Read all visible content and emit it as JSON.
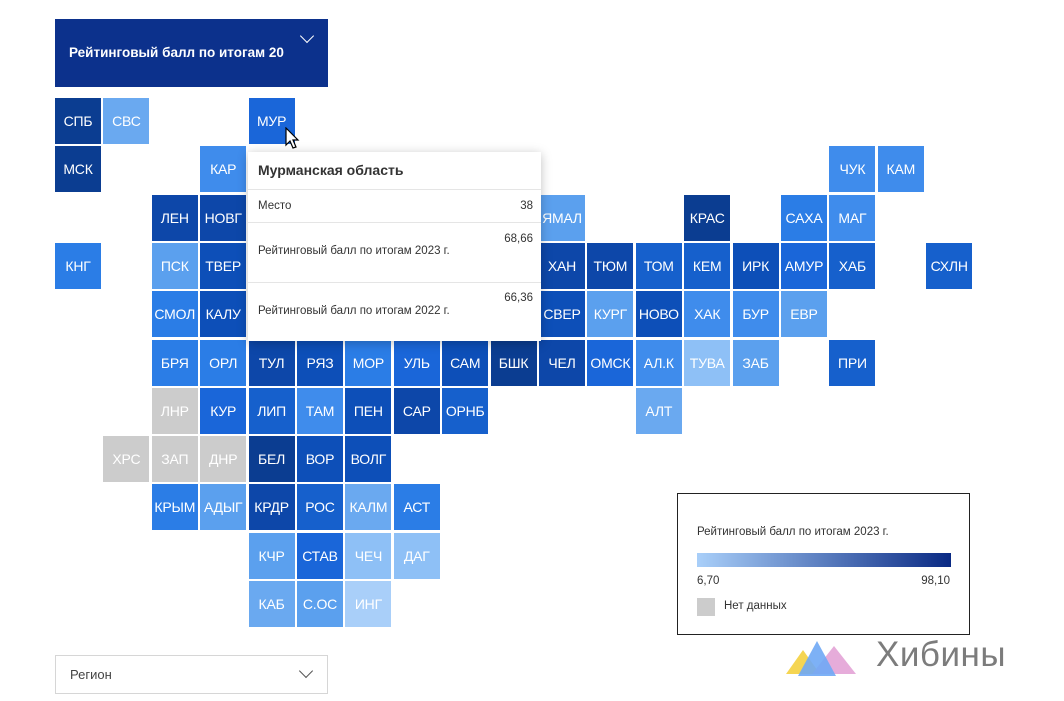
{
  "metric_selector": {
    "label": "Рейтинговый балл по итогам 20"
  },
  "regions": [
    {
      "code": "СПБ",
      "color": "#0b3d91"
    },
    {
      "code": "СВС",
      "color": "#6aa9f0"
    },
    {
      "code": "МУР",
      "color": "#1a66d9"
    },
    {
      "code": "МСК",
      "color": "#0b3d91"
    },
    {
      "code": "КАР",
      "color": "#3f8cec"
    },
    {
      "code": "ЧУК",
      "color": "#3f8cec"
    },
    {
      "code": "КАМ",
      "color": "#3f8cec"
    },
    {
      "code": "ЛЕН",
      "color": "#0d47a9"
    },
    {
      "code": "НОВГ",
      "color": "#0d47a9"
    },
    {
      "code": "ЯМАЛ",
      "color": "#5ba0ee"
    },
    {
      "code": "КРАС",
      "color": "#0b3d91"
    },
    {
      "code": "САХА",
      "color": "#2b7de6"
    },
    {
      "code": "МАГ",
      "color": "#3f8cec"
    },
    {
      "code": "КНГ",
      "color": "#2b7de6"
    },
    {
      "code": "ПСК",
      "color": "#5ba0ee"
    },
    {
      "code": "ТВЕР",
      "color": "#0d4fb8"
    },
    {
      "code": "ХАН",
      "color": "#0d47a9"
    },
    {
      "code": "ТЮМ",
      "color": "#0d47a9"
    },
    {
      "code": "ТОМ",
      "color": "#1660cc"
    },
    {
      "code": "КЕМ",
      "color": "#1660cc"
    },
    {
      "code": "ИРК",
      "color": "#0d4fb8"
    },
    {
      "code": "АМУР",
      "color": "#1a66d9"
    },
    {
      "code": "ХАБ",
      "color": "#1660cc"
    },
    {
      "code": "СХЛН",
      "color": "#1660cc"
    },
    {
      "code": "СМОЛ",
      "color": "#2b7de6"
    },
    {
      "code": "КАЛУ",
      "color": "#0d4fb8"
    },
    {
      "code": "СВЕР",
      "color": "#0d4fb8"
    },
    {
      "code": "КУРГ",
      "color": "#5ba0ee"
    },
    {
      "code": "НОВО",
      "color": "#0d4fb8"
    },
    {
      "code": "ХАК",
      "color": "#3f8cec"
    },
    {
      "code": "БУР",
      "color": "#3f8cec"
    },
    {
      "code": "ЕВР",
      "color": "#5ba0ee"
    },
    {
      "code": "БРЯ",
      "color": "#2b7de6"
    },
    {
      "code": "ОРЛ",
      "color": "#2b7de6"
    },
    {
      "code": "ТУЛ",
      "color": "#0d47a9"
    },
    {
      "code": "РЯЗ",
      "color": "#0d4fb8"
    },
    {
      "code": "МОР",
      "color": "#2b7de6"
    },
    {
      "code": "УЛЬ",
      "color": "#1a66d9"
    },
    {
      "code": "САМ",
      "color": "#0d4fb8"
    },
    {
      "code": "БШК",
      "color": "#0b3d91"
    },
    {
      "code": "ЧЕЛ",
      "color": "#0d47a9"
    },
    {
      "code": "ОМСК",
      "color": "#1a66d9"
    },
    {
      "code": "АЛ.К",
      "color": "#3f8cec"
    },
    {
      "code": "ТУВА",
      "color": "#8ec0f6"
    },
    {
      "code": "ЗАБ",
      "color": "#5ba0ee"
    },
    {
      "code": "ПРИ",
      "color": "#1660cc"
    },
    {
      "code": "ЛНР",
      "color": "#cccccc"
    },
    {
      "code": "КУР",
      "color": "#1a66d9"
    },
    {
      "code": "ЛИП",
      "color": "#1660cc"
    },
    {
      "code": "ТАМ",
      "color": "#3f8cec"
    },
    {
      "code": "ПЕН",
      "color": "#0d4fb8"
    },
    {
      "code": "САР",
      "color": "#0d47a9"
    },
    {
      "code": "ОРНБ",
      "color": "#1660cc"
    },
    {
      "code": "АЛТ",
      "color": "#6aa9f0"
    },
    {
      "code": "ХРС",
      "color": "#cccccc"
    },
    {
      "code": "ЗАП",
      "color": "#cccccc"
    },
    {
      "code": "ДНР",
      "color": "#cccccc"
    },
    {
      "code": "БЕЛ",
      "color": "#0b3d91"
    },
    {
      "code": "ВОР",
      "color": "#0d4fb8"
    },
    {
      "code": "ВОЛГ",
      "color": "#0d4fb8"
    },
    {
      "code": "КРЫМ",
      "color": "#2b7de6"
    },
    {
      "code": "АДЫГ",
      "color": "#5ba0ee"
    },
    {
      "code": "КРДР",
      "color": "#0d47a9"
    },
    {
      "code": "РОС",
      "color": "#1660cc"
    },
    {
      "code": "КАЛМ",
      "color": "#6aa9f0"
    },
    {
      "code": "АСТ",
      "color": "#2b7de6"
    },
    {
      "code": "КЧР",
      "color": "#5ba0ee"
    },
    {
      "code": "СТАВ",
      "color": "#1a66d9"
    },
    {
      "code": "ЧЕЧ",
      "color": "#8ec0f6"
    },
    {
      "code": "ДАГ",
      "color": "#8ec0f6"
    },
    {
      "code": "КАБ",
      "color": "#6aa9f0"
    },
    {
      "code": "С.ОС",
      "color": "#5ba0ee"
    },
    {
      "code": "ИНГ",
      "color": "#a9cff9"
    }
  ],
  "tooltip": {
    "title": "Мурманская область",
    "rows": [
      {
        "label": "Место",
        "value": "38"
      },
      {
        "label": "Рейтинговый балл по итогам 2023 г.",
        "value": "68,66"
      },
      {
        "label": "Рейтинговый балл по итогам 2022 г.",
        "value": "66,36"
      }
    ]
  },
  "legend": {
    "title": "Рейтинговый балл по итогам 2023 г.",
    "min": "6,70",
    "max": "98,10",
    "no_data": "Нет данных",
    "gradient": [
      "#a9cff9",
      "#0a2a84"
    ],
    "no_data_color": "#cccccc"
  },
  "region_selector": {
    "placeholder": "Регион"
  },
  "logo": {
    "text": "Хибины"
  },
  "colors": {
    "accent": "#0c318c"
  }
}
